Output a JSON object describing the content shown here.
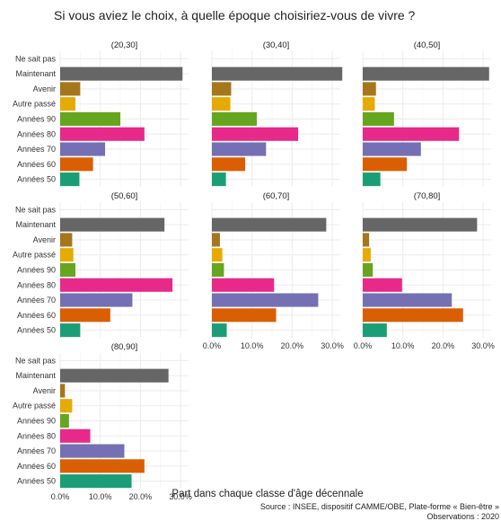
{
  "chart_data": {
    "type": "bar",
    "orientation": "horizontal",
    "title": "Si vous aviez le choix, à quelle époque choisiriez-vous de vivre ?",
    "xlabel": "Part dans chaque classe d'âge décennale",
    "ylabel": "",
    "caption": [
      "Source : INSEE, dispositif CAMME/OBE, Plate-forme « Bien-être »",
      "Observations : 2020"
    ],
    "categories": [
      "Ne sait pas",
      "Maintenant",
      "Avenir",
      "Autre passé",
      "Années 90",
      "Années 80",
      "Années 70",
      "Années 60",
      "Années 50"
    ],
    "colors": {
      "Ne sait pas": "#666666",
      "Maintenant": "#666666",
      "Avenir": "#a6761d",
      "Autre passé": "#e6ab02",
      "Années 90": "#66a61e",
      "Années 80": "#e7298a",
      "Années 70": "#7570b3",
      "Années 60": "#d95f02",
      "Années 50": "#1b9e77"
    },
    "x_ticks": [
      "0.0%",
      "10.0%",
      "20.0%",
      "30.0%"
    ],
    "xlim": [
      0,
      0.32
    ],
    "grid": true,
    "facets": [
      {
        "label": "(20,30]",
        "values": [
          0,
          0.305,
          0.05,
          0.038,
          0.15,
          0.21,
          0.112,
          0.082,
          0.048
        ]
      },
      {
        "label": "(30,40]",
        "values": [
          0,
          0.325,
          0.048,
          0.046,
          0.112,
          0.215,
          0.135,
          0.083,
          0.035
        ]
      },
      {
        "label": "(40,50]",
        "values": [
          0,
          0.315,
          0.033,
          0.03,
          0.078,
          0.24,
          0.145,
          0.11,
          0.044
        ]
      },
      {
        "label": "(50,60]",
        "values": [
          0,
          0.26,
          0.03,
          0.033,
          0.038,
          0.28,
          0.18,
          0.125,
          0.05
        ]
      },
      {
        "label": "(60,70]",
        "values": [
          0,
          0.285,
          0.02,
          0.026,
          0.03,
          0.155,
          0.265,
          0.16,
          0.037
        ]
      },
      {
        "label": "(70,80]",
        "values": [
          0,
          0.285,
          0.016,
          0.02,
          0.025,
          0.098,
          0.222,
          0.25,
          0.06
        ]
      },
      {
        "label": "(80,90]",
        "values": [
          0,
          0.27,
          0.012,
          0.03,
          0.022,
          0.075,
          0.16,
          0.21,
          0.178
        ]
      }
    ]
  }
}
